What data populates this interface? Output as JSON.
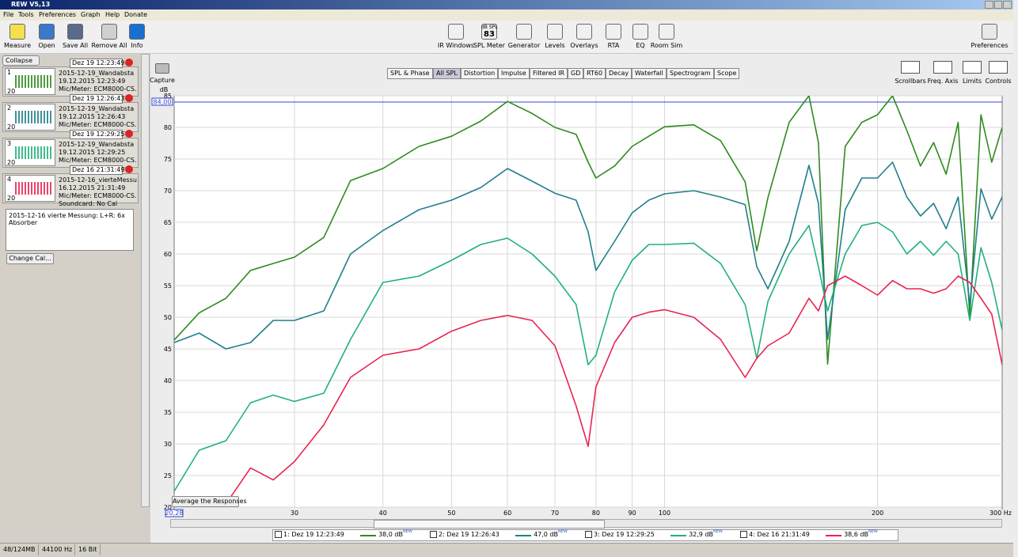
{
  "window": {
    "title": "REW V5,13"
  },
  "menu": [
    "File",
    "Tools",
    "Preferences",
    "Graph",
    "Help",
    "Donate"
  ],
  "toolbar_left": [
    "Measure",
    "Open",
    "Save All",
    "Remove All",
    "Info"
  ],
  "toolbar_center": [
    "IR Windows",
    "SPL Meter",
    "Generator",
    "Levels",
    "Overlays",
    "RTA",
    "EQ",
    "Room Sim"
  ],
  "spl_icon": {
    "unit": "dB SPL",
    "value": 83
  },
  "toolbar_right": [
    "Preferences"
  ],
  "panel": {
    "collapse": "Collapse",
    "measurements": [
      {
        "index": 1,
        "date": "Dez 19 12:23:49",
        "name": "2015-12-19_Wandabsta",
        "time": "19.12.2015 12:23:49",
        "lines": [
          "Mic/Meter: ECM8000-CS."
        ],
        "axis_start": 20
      },
      {
        "index": 2,
        "date": "Dez 19 12:26:43",
        "name": "2015-12-19_Wandabsta",
        "time": "19.12.2015 12:26:43",
        "lines": [
          "Mic/Meter: ECM8000-CS."
        ],
        "axis_start": 20
      },
      {
        "index": 3,
        "date": "Dez 19 12:29:25",
        "name": "2015-12-19_Wandabsta",
        "time": "19.12.2015 12:29:25",
        "lines": [
          "Mic/Meter: ECM8000-CS."
        ],
        "axis_start": 20
      },
      {
        "index": 4,
        "date": "Dez 16 21:31:49",
        "name": "2015-12-16_vierteMessu",
        "time": "16.12.2015 21:31:49",
        "lines": [
          "Mic/Meter: ECM8000-CS.",
          "Soundcard: No Cal"
        ],
        "axis_start": 20
      }
    ],
    "notes": "2015-12-16 vierte Messung: L+R: 6x Absorber",
    "change_cal": "Change Cal..."
  },
  "capture": "Capture",
  "tabs": [
    "SPL & Phase",
    "All SPL",
    "Distortion",
    "Impulse",
    "Filtered IR",
    "GD",
    "RT60",
    "Decay",
    "Waterfall",
    "Spectrogram",
    "Scope"
  ],
  "selected_tab": 1,
  "graph_tools": [
    "Scrollbars",
    "Freq. Axis",
    "Limits",
    "Controls"
  ],
  "average_button": "Average the Responses",
  "status": [
    "48/124MB",
    "44100 Hz",
    "16 Bit"
  ],
  "chart_data": {
    "type": "line",
    "x_scale": "log",
    "y_label": "dB",
    "grid": true,
    "xlim": [
      20.28,
      300
    ],
    "ylim": [
      20,
      85
    ],
    "xticks": [
      {
        "value": 20.28,
        "label": "20,28"
      },
      30,
      40,
      50,
      60,
      70,
      80,
      90,
      100,
      200,
      {
        "value": 300,
        "label": "300 Hz"
      }
    ],
    "yticks": [
      20,
      25,
      30,
      35,
      40,
      45,
      50,
      55,
      60,
      65,
      70,
      75,
      80,
      85
    ],
    "cursor": {
      "value": 84,
      "label": "84,00"
    },
    "x": [
      20.28,
      22,
      24,
      26,
      28,
      30,
      33,
      36,
      40,
      45,
      50,
      55,
      60,
      65,
      70,
      75,
      78,
      80,
      85,
      90,
      95,
      100,
      110,
      120,
      130,
      135,
      140,
      150,
      160,
      165,
      170,
      180,
      190,
      200,
      210,
      220,
      230,
      240,
      250,
      260,
      270,
      280,
      290,
      300
    ],
    "series": [
      {
        "name": "1: Dez 19 12:23:49",
        "color": "#2e8b1e",
        "level": "38,0 dB",
        "tag": "NEW",
        "values": [
          46.4,
          50.7,
          53,
          57.4,
          58.5,
          59.5,
          62.6,
          71.6,
          73.5,
          77,
          78.6,
          81,
          84.1,
          82.2,
          80,
          78.9,
          74.5,
          72,
          73.9,
          77,
          78.6,
          80.1,
          80.4,
          77.9,
          71.4,
          60.5,
          68.9,
          80.8,
          85,
          77.6,
          42.6,
          77,
          80.8,
          82,
          85,
          79.5,
          73.9,
          77.6,
          72.6,
          80.8,
          50.1,
          82,
          74.5,
          80
        ]
      },
      {
        "name": "2: Dez 19 12:26:43",
        "color": "#207f8c",
        "level": "47,0 dB",
        "tag": "NEW",
        "values": [
          46,
          47.5,
          45,
          46,
          49.5,
          49.5,
          51,
          60,
          63.7,
          67,
          68.5,
          70.5,
          73.5,
          71.5,
          69.6,
          68.5,
          63.5,
          57.4,
          62,
          66.5,
          68.5,
          69.5,
          70,
          69,
          67.8,
          58,
          54.5,
          62,
          74,
          68,
          46.5,
          67,
          72,
          72,
          74.5,
          69,
          66,
          68,
          64,
          69,
          52,
          70.3,
          65.5,
          69
        ]
      },
      {
        "name": "3: Dez 19 12:29:25",
        "color": "#22b07a",
        "level": "32,9 dB",
        "tag": "NEW",
        "values": [
          22.5,
          29,
          30.5,
          36.5,
          37.7,
          36.7,
          38,
          46.5,
          55.5,
          56.5,
          59,
          61.5,
          62.5,
          60,
          56.5,
          52,
          42.5,
          44,
          54,
          59,
          61.5,
          61.5,
          61.7,
          58.5,
          52,
          43.5,
          52.5,
          60,
          64.5,
          58,
          51,
          60,
          64.5,
          65,
          63.5,
          60,
          62,
          59.8,
          62,
          60,
          49.5,
          61,
          55.5,
          48
        ]
      },
      {
        "name": "4: Dez 16 21:31:49",
        "color": "#e8244f",
        "level": "38,6 dB",
        "tag": "NEW",
        "values": [
          null,
          null,
          20.5,
          26.2,
          24.3,
          27.2,
          33,
          40.5,
          44,
          45,
          47.8,
          49.5,
          50.3,
          49.5,
          45.5,
          36,
          29.6,
          39,
          46,
          50,
          50.8,
          51.2,
          50,
          46.5,
          40.5,
          43.5,
          45.5,
          47.5,
          53,
          51,
          55,
          56.5,
          55,
          53.5,
          55.8,
          54.5,
          54.5,
          53.8,
          54.5,
          56.5,
          55.5,
          53,
          50.5,
          42.5
        ]
      }
    ]
  }
}
